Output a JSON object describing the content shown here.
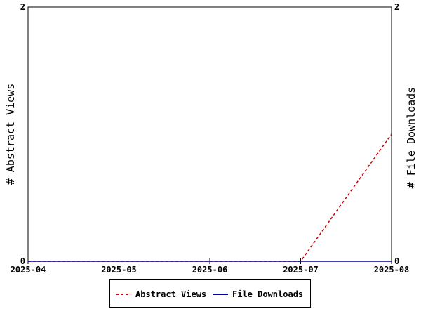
{
  "chart_data": {
    "type": "line",
    "x": [
      "2025-04",
      "2025-05",
      "2025-06",
      "2025-07",
      "2025-08"
    ],
    "series": [
      {
        "name": "Abstract Views",
        "values": [
          0,
          0,
          0,
          0,
          1
        ],
        "color": "#cc0000",
        "style": "dashed",
        "axis": "left"
      },
      {
        "name": "File Downloads",
        "values": [
          0,
          0,
          0,
          0,
          0
        ],
        "color": "#000099",
        "style": "solid",
        "axis": "right"
      }
    ],
    "ylabel": "# Abstract Views",
    "y2label": "# File Downloads",
    "ylim": [
      0,
      2
    ],
    "y2lim": [
      0,
      2
    ],
    "yticks": [
      "0",
      "2"
    ],
    "y2ticks": [
      "0",
      "2"
    ],
    "grid": false,
    "legend_position": "bottom-center"
  }
}
